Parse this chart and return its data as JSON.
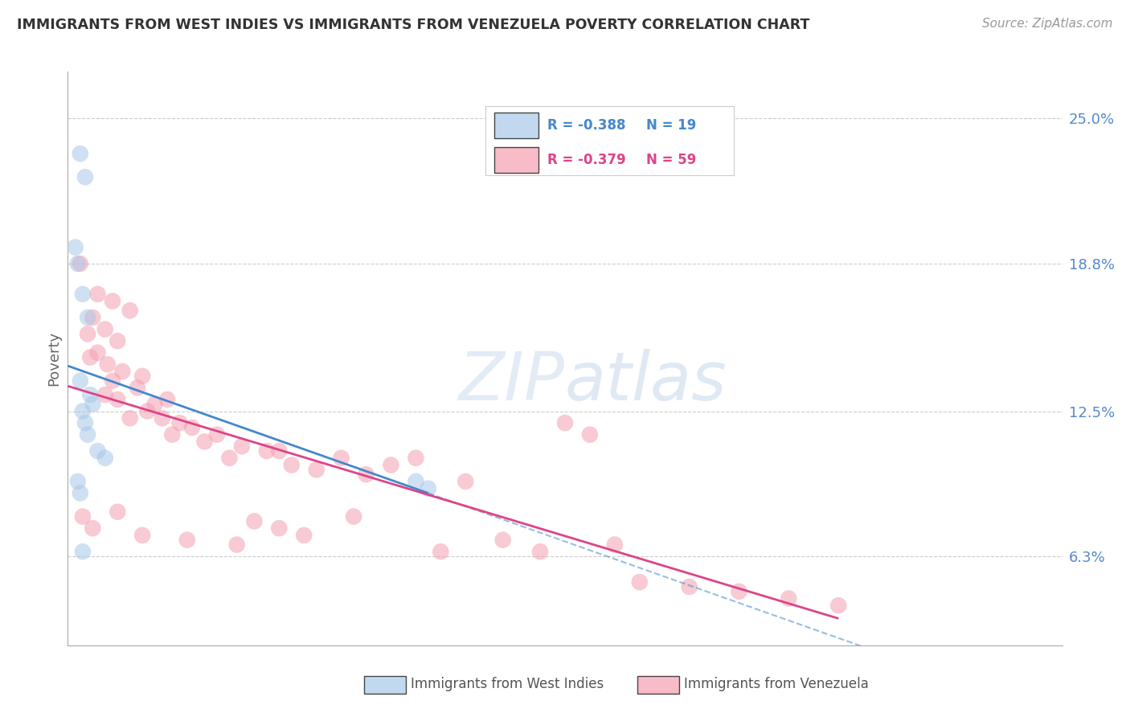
{
  "title": "IMMIGRANTS FROM WEST INDIES VS IMMIGRANTS FROM VENEZUELA POVERTY CORRELATION CHART",
  "source": "Source: ZipAtlas.com",
  "ylabel": "Poverty",
  "y_ticks": [
    6.3,
    12.5,
    18.8,
    25.0
  ],
  "y_tick_labels": [
    "6.3%",
    "12.5%",
    "18.8%",
    "25.0%"
  ],
  "x_range": [
    0.0,
    40.0
  ],
  "y_range": [
    2.5,
    27.0
  ],
  "legend_r1": "R = -0.388",
  "legend_n1": "N = 19",
  "legend_r2": "R = -0.379",
  "legend_n2": "N = 59",
  "color_blue": "#a8c8e8",
  "color_pink": "#f4a0b0",
  "color_line_blue": "#4488cc",
  "color_line_pink": "#dd4488",
  "west_indies_x": [
    0.5,
    0.7,
    0.3,
    0.4,
    0.6,
    0.8,
    0.5,
    0.9,
    1.0,
    0.6,
    0.7,
    0.8,
    1.2,
    1.5,
    0.4,
    0.5,
    0.6,
    14.0,
    14.5
  ],
  "west_indies_y": [
    23.5,
    22.5,
    19.5,
    18.8,
    17.5,
    16.5,
    13.8,
    13.2,
    12.8,
    12.5,
    12.0,
    11.5,
    10.8,
    10.5,
    9.5,
    9.0,
    6.5,
    9.5,
    9.2
  ],
  "venezuela_x": [
    0.5,
    1.2,
    1.8,
    2.5,
    1.0,
    1.5,
    0.8,
    2.0,
    1.2,
    0.9,
    1.6,
    2.2,
    3.0,
    1.8,
    2.8,
    1.5,
    2.0,
    3.5,
    4.0,
    3.2,
    2.5,
    4.5,
    5.0,
    3.8,
    4.2,
    6.0,
    7.0,
    8.0,
    5.5,
    6.5,
    8.5,
    9.0,
    10.0,
    12.0,
    11.0,
    13.0,
    14.0,
    16.0,
    7.5,
    8.5,
    20.0,
    21.0,
    0.6,
    1.0,
    2.0,
    3.0,
    4.8,
    6.8,
    9.5,
    11.5,
    15.0,
    17.5,
    19.0,
    22.0,
    23.0,
    25.0,
    27.0,
    29.0,
    31.0
  ],
  "venezuela_y": [
    18.8,
    17.5,
    17.2,
    16.8,
    16.5,
    16.0,
    15.8,
    15.5,
    15.0,
    14.8,
    14.5,
    14.2,
    14.0,
    13.8,
    13.5,
    13.2,
    13.0,
    12.8,
    13.0,
    12.5,
    12.2,
    12.0,
    11.8,
    12.2,
    11.5,
    11.5,
    11.0,
    10.8,
    11.2,
    10.5,
    10.8,
    10.2,
    10.0,
    9.8,
    10.5,
    10.2,
    10.5,
    9.5,
    7.8,
    7.5,
    12.0,
    11.5,
    8.0,
    7.5,
    8.2,
    7.2,
    7.0,
    6.8,
    7.2,
    8.0,
    6.5,
    7.0,
    6.5,
    6.8,
    5.2,
    5.0,
    4.8,
    4.5,
    4.2
  ]
}
